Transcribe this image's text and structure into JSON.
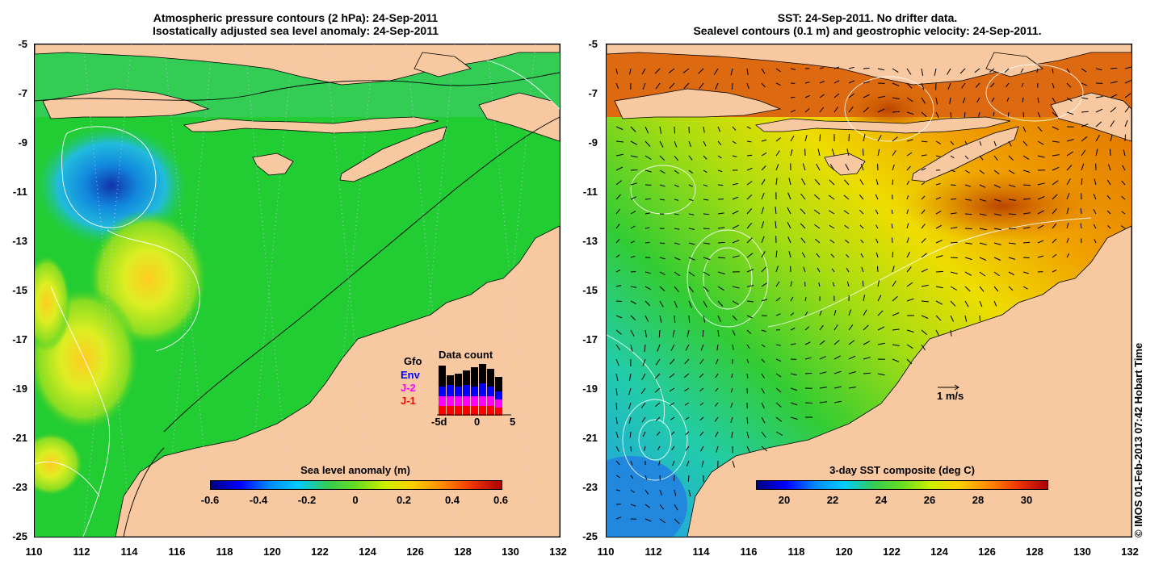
{
  "left_panel": {
    "title_line1": "Atmospheric pressure contours (2 hPa): 24-Sep-2011",
    "title_line2": "Isostatically adjusted sea level anomaly: 24-Sep-2011",
    "y_ticks": [
      "-5",
      "-7",
      "-9",
      "-11",
      "-13",
      "-15",
      "-17",
      "-19",
      "-21",
      "-23",
      "-25"
    ],
    "x_ticks": [
      "110",
      "112",
      "114",
      "116",
      "118",
      "120",
      "122",
      "124",
      "126",
      "128",
      "130",
      "132"
    ],
    "colorbar": {
      "title": "Sea level anomaly (m)",
      "labels": [
        "-0.6",
        "-0.4",
        "-0.2",
        "0",
        "0.2",
        "0.4",
        "0.6"
      ],
      "range": [
        -0.6,
        0.6
      ]
    },
    "data_count": {
      "title": "Data count",
      "legend": [
        {
          "label": "Gfo",
          "color": "#000000"
        },
        {
          "label": "Env",
          "color": "#0000ff"
        },
        {
          "label": "J-2",
          "color": "#ff00ff"
        },
        {
          "label": "J-1",
          "color": "#ff0000"
        }
      ],
      "x_labels": [
        "-5d",
        "0",
        "5"
      ]
    }
  },
  "right_panel": {
    "title_line1": "SST: 24-Sep-2011. No drifter data.",
    "title_line2": "Sealevel contours (0.1 m) and geostrophic velocity: 24-Sep-2011.",
    "y_ticks": [
      "-5",
      "-7",
      "-9",
      "-11",
      "-13",
      "-15",
      "-17",
      "-19",
      "-21",
      "-23",
      "-25"
    ],
    "x_ticks": [
      "110",
      "112",
      "114",
      "116",
      "118",
      "120",
      "122",
      "124",
      "126",
      "128",
      "130",
      "132"
    ],
    "colorbar": {
      "title": "3-day SST composite (deg C)",
      "labels": [
        "20",
        "22",
        "24",
        "26",
        "28",
        "30"
      ],
      "range": [
        19,
        31
      ]
    },
    "velocity_scale_label": "1 m/s"
  },
  "credit": "© IMOS 01-Feb-2013 07:42 Hobart Time",
  "colors": {
    "land": "#f8c9a0",
    "sla_mid": "#22cc33",
    "sst_warm": "#ee8800",
    "sst_cool": "#22aaee"
  }
}
